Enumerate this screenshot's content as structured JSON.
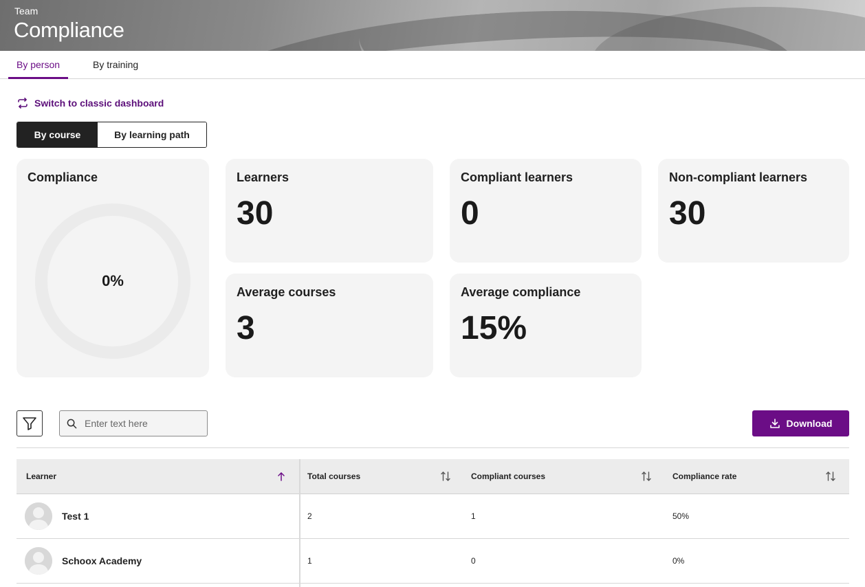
{
  "header": {
    "subtitle": "Team",
    "title": "Compliance"
  },
  "tabs": [
    {
      "label": "By person",
      "active": true
    },
    {
      "label": "By training",
      "active": false
    }
  ],
  "switch_link": {
    "label": "Switch to classic dashboard",
    "icon": "swap-arrows-icon"
  },
  "segment": [
    {
      "label": "By course",
      "active": true
    },
    {
      "label": "By learning path",
      "active": false
    }
  ],
  "cards": {
    "compliance": {
      "title": "Compliance",
      "value": "0%",
      "fraction": 0
    },
    "learners": {
      "title": "Learners",
      "value": "30"
    },
    "compliant": {
      "title": "Compliant learners",
      "value": "0"
    },
    "noncompliant": {
      "title": "Non-compliant learners",
      "value": "30"
    },
    "avg_courses": {
      "title": "Average courses",
      "value": "3"
    },
    "avg_compliance": {
      "title": "Average compliance",
      "value": "15%"
    }
  },
  "toolbar": {
    "search_placeholder": "Enter text here",
    "download_label": "Download",
    "filter_icon": "filter-icon"
  },
  "table": {
    "columns": [
      "Learner",
      "Total courses",
      "Compliant courses",
      "Compliance rate"
    ],
    "rows": [
      {
        "name": "Test 1",
        "total": "2",
        "compliant": "1",
        "rate": "50%"
      },
      {
        "name": "Schoox Academy",
        "total": "1",
        "compliant": "0",
        "rate": "0%"
      }
    ]
  },
  "colors": {
    "accent": "#6b0d86",
    "card_bg": "#f4f4f4",
    "dark": "#222222"
  }
}
